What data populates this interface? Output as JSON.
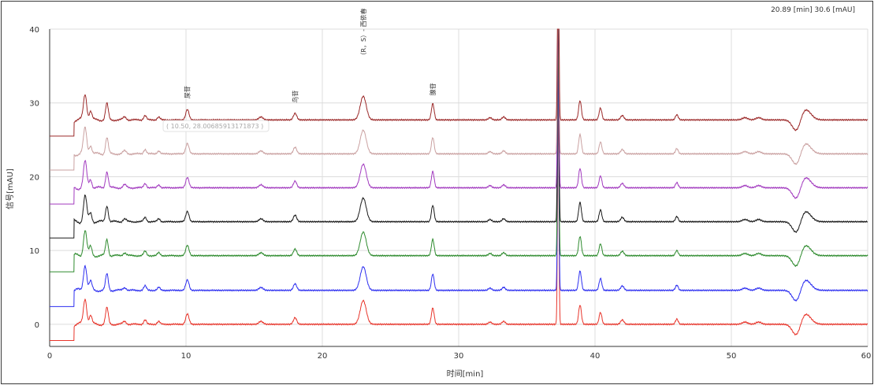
{
  "readout": {
    "label": "20.89 [min]  30.6 [mAU]"
  },
  "tooltip": {
    "text": "( 10.50, 28.00685913171873 )"
  },
  "colors": {
    "grid": "#dcdcdc",
    "axis": "#333333"
  },
  "chart_data": {
    "type": "line",
    "xlabel": "时间[min]",
    "ylabel": "信号[mAU]",
    "xlim": [
      0,
      60
    ],
    "ylim": [
      -3,
      40
    ],
    "xticks": [
      0,
      10,
      20,
      30,
      40,
      50,
      60
    ],
    "yticks": [
      0,
      10,
      20,
      30,
      40
    ],
    "grid": true,
    "peaks": [
      {
        "t": 2.6,
        "h": 3.5,
        "w": 0.12
      },
      {
        "t": 3.0,
        "h": 1.2,
        "w": 0.1
      },
      {
        "t": 4.2,
        "h": 2.2,
        "w": 0.1
      },
      {
        "t": 5.5,
        "h": 0.4,
        "w": 0.12
      },
      {
        "t": 7.0,
        "h": 0.6,
        "w": 0.1
      },
      {
        "t": 8.0,
        "h": 0.4,
        "w": 0.1
      },
      {
        "t": 10.1,
        "h": 1.4,
        "w": 0.12
      },
      {
        "t": 15.5,
        "h": 0.4,
        "w": 0.15
      },
      {
        "t": 18.0,
        "h": 0.9,
        "w": 0.12
      },
      {
        "t": 23.0,
        "h": 3.2,
        "w": 0.22
      },
      {
        "t": 28.1,
        "h": 2.2,
        "w": 0.1
      },
      {
        "t": 32.3,
        "h": 0.3,
        "w": 0.12
      },
      {
        "t": 33.3,
        "h": 0.4,
        "w": 0.12
      },
      {
        "t": 37.3,
        "h": 30.0,
        "w": 0.05
      },
      {
        "t": 38.9,
        "h": 2.6,
        "w": 0.1
      },
      {
        "t": 40.4,
        "h": 1.6,
        "w": 0.1
      },
      {
        "t": 42.0,
        "h": 0.6,
        "w": 0.12
      },
      {
        "t": 46.0,
        "h": 0.7,
        "w": 0.1
      },
      {
        "t": 51.0,
        "h": 0.3,
        "w": 0.2
      },
      {
        "t": 52.0,
        "h": 0.3,
        "w": 0.2
      }
    ],
    "dip": {
      "t": 54.8,
      "depth": 1.8,
      "w": 0.3,
      "rise_t": 55.4,
      "rise_h": 1.5,
      "rise_w": 0.4
    },
    "series": [
      {
        "color": "#e8352b",
        "baseline": 0.0
      },
      {
        "color": "#2d2ff0",
        "baseline": 4.6
      },
      {
        "color": "#2e8b2e",
        "baseline": 9.3
      },
      {
        "color": "#1a1a1a",
        "baseline": 13.9
      },
      {
        "color": "#a23bbf",
        "baseline": 18.5
      },
      {
        "color": "#caa1a1",
        "baseline": 23.1
      },
      {
        "color": "#9c2a2a",
        "baseline": 27.7
      }
    ],
    "annotations": [
      {
        "text": "尿苷",
        "x": 10.1,
        "y": 30.6
      },
      {
        "text": "鸟苷",
        "x": 18.0,
        "y": 30.0
      },
      {
        "text": "（R，S）- 西依春",
        "x": 23.0,
        "y": 36.0
      },
      {
        "text": "腺苷",
        "x": 28.1,
        "y": 31.0
      }
    ]
  }
}
